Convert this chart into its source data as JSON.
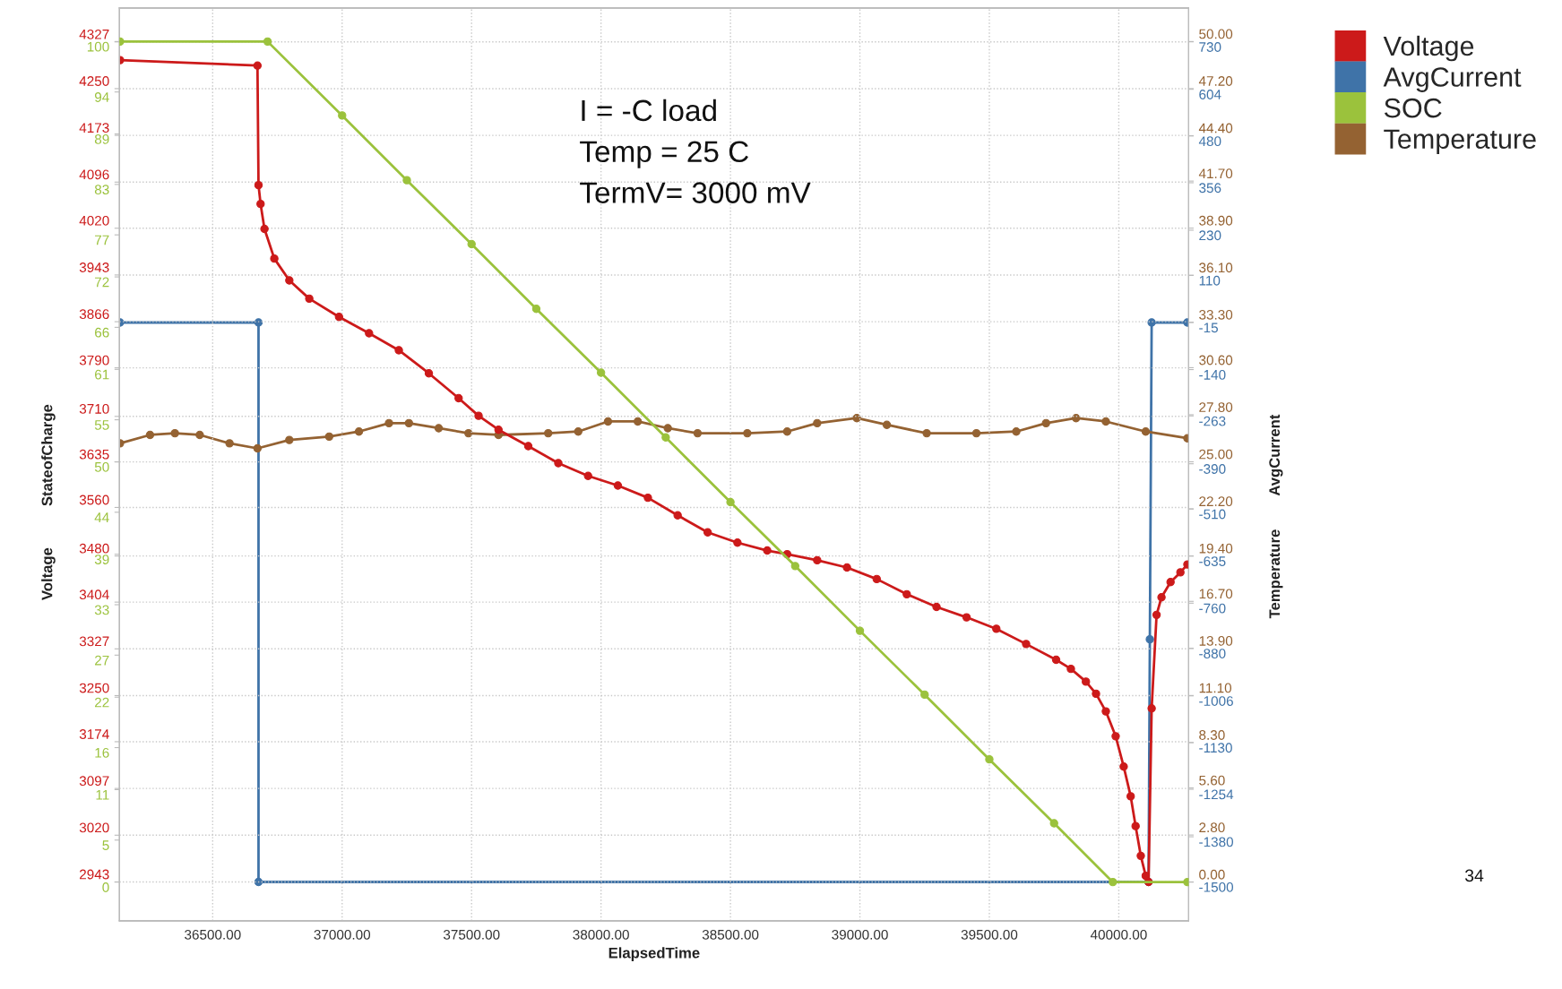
{
  "chart_data": [
    {
      "type": "line",
      "xlabel": "ElapsedTime",
      "ylabel": "Voltage",
      "y2label": "AvgCurrent",
      "xlim": [
        36140,
        40270
      ],
      "xticks": [
        {
          "value": 36500,
          "label": "36500.00"
        },
        {
          "value": 37000,
          "label": "37000.00"
        },
        {
          "value": 37500,
          "label": "37500.00"
        },
        {
          "value": 38000,
          "label": "38000.00"
        },
        {
          "value": 38500,
          "label": "38500.00"
        },
        {
          "value": 39000,
          "label": "39000.00"
        },
        {
          "value": 39500,
          "label": "39500.00"
        },
        {
          "value": 40000,
          "label": "40000.00"
        }
      ],
      "ylim": [
        2879,
        4383
      ],
      "yticks": [
        2943,
        3020,
        3097,
        3174,
        3250,
        3327,
        3404,
        3480,
        3560,
        3635,
        3710,
        3790,
        3866,
        3943,
        4020,
        4096,
        4173,
        4250,
        4327
      ],
      "y2lim": [
        -1603,
        820
      ],
      "y2ticks": [
        -1500,
        -1380,
        -1254,
        -1130,
        -1006,
        -880,
        -760,
        -635,
        -510,
        -390,
        -263,
        -140,
        -15,
        110,
        230,
        356,
        480,
        604,
        730
      ],
      "grid": true,
      "legend": "top right",
      "marker": "circle",
      "line_style": "solid",
      "annotations": [
        "I = -C load",
        "Temp = 25 C",
        "TermV= 3000 mV",
        "34"
      ],
      "series": [
        {
          "name": "Voltage",
          "color": "#cc1a1a",
          "axis": "y",
          "x": [
            36142,
            36673,
            36677,
            36685,
            36700,
            36738,
            36796,
            36873,
            36988,
            37104,
            37219,
            37335,
            37450,
            37527,
            37604,
            37719,
            37835,
            37950,
            38065,
            38181,
            38296,
            38412,
            38527,
            38642,
            38719,
            38835,
            38950,
            39065,
            39181,
            39296,
            39412,
            39527,
            39642,
            39758,
            39815,
            39873,
            39912,
            39950,
            39988,
            40019,
            40046,
            40065,
            40085,
            40104,
            40115,
            40127,
            40146,
            40165,
            40200,
            40238,
            40265
          ],
          "values": [
            4297,
            4288,
            4091,
            4060,
            4019,
            3970,
            3934,
            3904,
            3874,
            3847,
            3819,
            3781,
            3740,
            3711,
            3688,
            3661,
            3633,
            3612,
            3596,
            3576,
            3547,
            3519,
            3502,
            3489,
            3483,
            3473,
            3461,
            3442,
            3417,
            3396,
            3379,
            3360,
            3335,
            3309,
            3294,
            3273,
            3253,
            3224,
            3183,
            3133,
            3084,
            3035,
            2986,
            2953,
            2943,
            3229,
            3383,
            3412,
            3437,
            3453,
            3466
          ]
        },
        {
          "name": "AvgCurrent",
          "color": "#3f73a8",
          "axis": "y2",
          "x": [
            36142,
            36677,
            36677,
            40115,
            40120,
            40127,
            40265
          ],
          "values": [
            -15,
            -15,
            -1500,
            -1500,
            -856,
            -15,
            -15
          ]
        }
      ]
    },
    {
      "type": "line",
      "ylabel": "StateofCharge",
      "y2label": "Temperature",
      "tick_labels": "y",
      "xlim": [
        36140,
        40270
      ],
      "ylim": [
        -4.6,
        104
      ],
      "yticks": [
        0,
        5,
        11,
        16,
        22,
        27,
        33,
        39,
        44,
        50,
        55,
        61,
        66,
        72,
        77,
        83,
        89,
        94,
        100
      ],
      "y2lim": [
        -2.3,
        52
      ],
      "y2ticks": [
        {
          "value": 0,
          "label": "0.00"
        },
        {
          "value": 2.8,
          "label": "2.80"
        },
        {
          "value": 5.6,
          "label": "5.60"
        },
        {
          "value": 8.3,
          "label": "8.30"
        },
        {
          "value": 11.1,
          "label": "11.10"
        },
        {
          "value": 13.9,
          "label": "13.90"
        },
        {
          "value": 16.7,
          "label": "16.70"
        },
        {
          "value": 19.4,
          "label": "19.40"
        },
        {
          "value": 22.2,
          "label": "22.20"
        },
        {
          "value": 25,
          "label": "25.00"
        },
        {
          "value": 27.8,
          "label": "27.80"
        },
        {
          "value": 30.6,
          "label": "30.60"
        },
        {
          "value": 33.3,
          "label": "33.30"
        },
        {
          "value": 36.1,
          "label": "36.10"
        },
        {
          "value": 38.9,
          "label": "38.90"
        },
        {
          "value": 41.7,
          "label": "41.70"
        },
        {
          "value": 44.4,
          "label": "44.40"
        },
        {
          "value": 47.2,
          "label": "47.20"
        },
        {
          "value": 50,
          "label": "50.00"
        }
      ],
      "legend": "top right",
      "marker": "circle",
      "line_style": "solid",
      "series": [
        {
          "name": "SOC",
          "color": "#9bc23c",
          "axis": "y",
          "x": [
            36142,
            36712,
            37000,
            37250,
            37500,
            37750,
            38000,
            38250,
            38500,
            38750,
            39000,
            39250,
            39500,
            39750,
            39977,
            40265
          ],
          "values": [
            100,
            100,
            91.2,
            83.5,
            75.9,
            68.2,
            60.6,
            52.9,
            45.2,
            37.6,
            29.9,
            22.3,
            14.6,
            7.0,
            0,
            0
          ]
        },
        {
          "name": "Temperature",
          "color": "#946232",
          "axis": "y2",
          "x": [
            36142,
            36258,
            36354,
            36450,
            36565,
            36673,
            36796,
            36950,
            37065,
            37181,
            37258,
            37373,
            37488,
            37604,
            37796,
            37912,
            38027,
            38142,
            38258,
            38373,
            38565,
            38719,
            38835,
            38988,
            39104,
            39258,
            39450,
            39604,
            39719,
            39835,
            39950,
            40104,
            40265
          ],
          "values": [
            26.1,
            26.6,
            26.7,
            26.6,
            26.1,
            25.8,
            26.3,
            26.5,
            26.8,
            27.3,
            27.3,
            27.0,
            26.7,
            26.6,
            26.7,
            26.8,
            27.4,
            27.4,
            27.0,
            26.7,
            26.7,
            26.8,
            27.3,
            27.6,
            27.2,
            26.7,
            26.7,
            26.8,
            27.3,
            27.6,
            27.4,
            26.8,
            26.4
          ]
        }
      ]
    }
  ]
}
